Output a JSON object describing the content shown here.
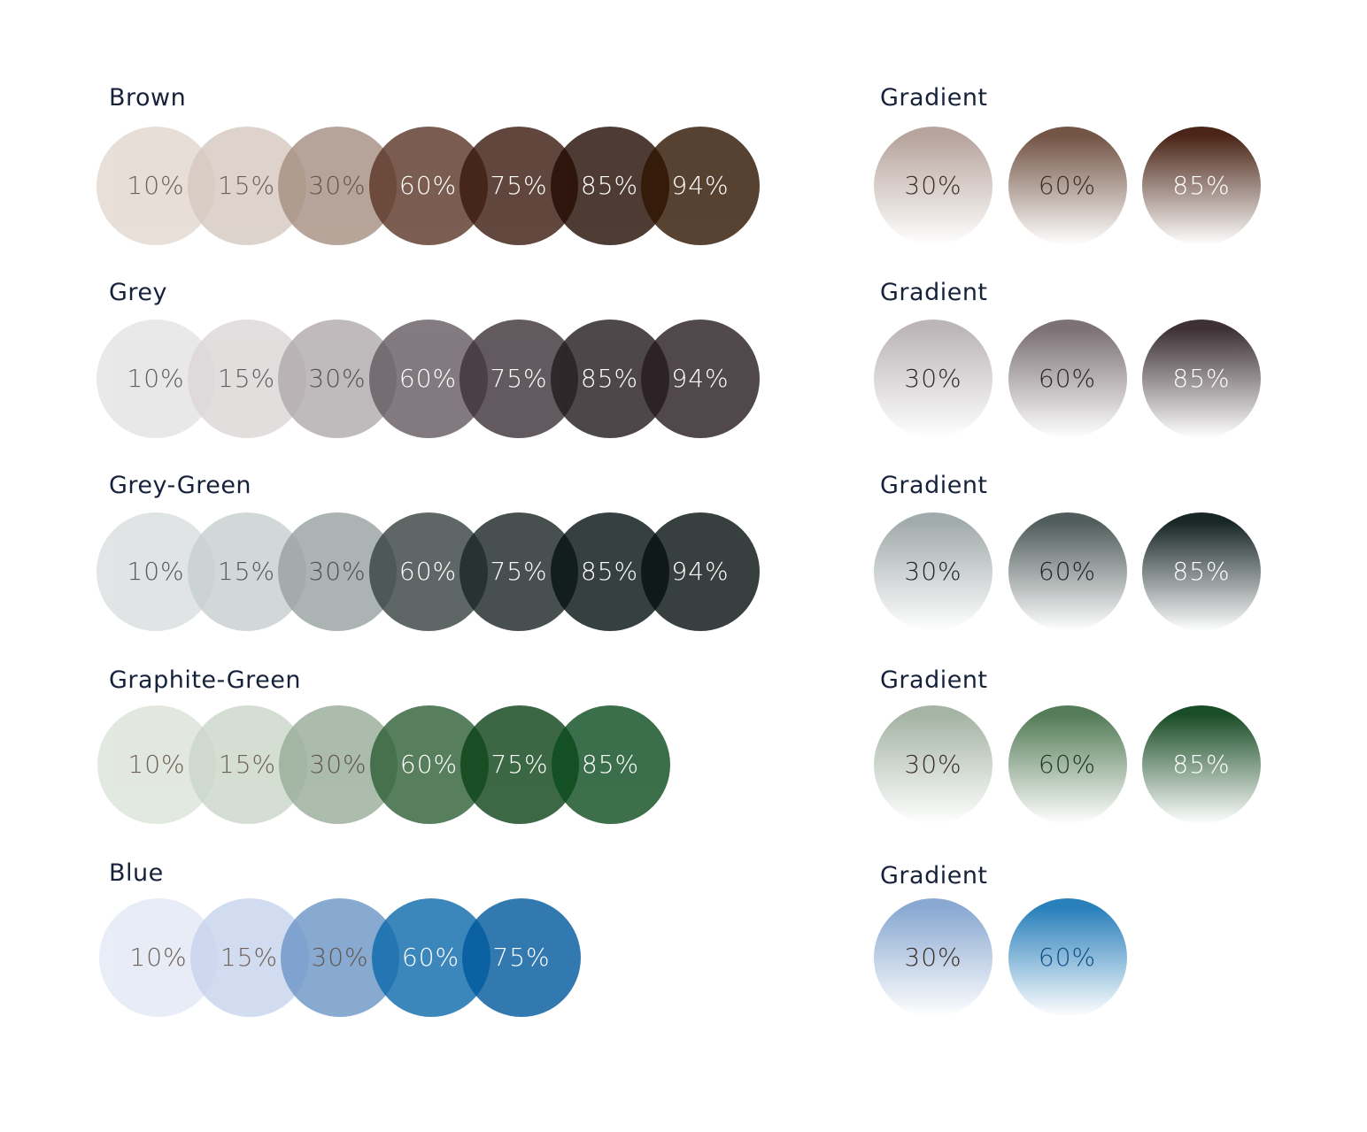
{
  "groups": [
    {
      "label": "Brown",
      "shades": [
        {
          "value": "10%",
          "color": "#e3d7cf",
          "text": "#4a3a30"
        },
        {
          "value": "15%",
          "color": "#d5c8c0",
          "text": "#4a3a30"
        },
        {
          "value": "30%",
          "color": "#a58e81",
          "text": "#3d2d24"
        },
        {
          "value": "60%",
          "color": "#5a3425",
          "text": "#ffffff"
        },
        {
          "value": "75%",
          "color": "#3a190e",
          "text": "#ffffff"
        },
        {
          "value": "85%",
          "color": "#220b02",
          "text": "#ffffff"
        },
        {
          "value": "94%",
          "color": "#2e1400",
          "text": "#ffffff"
        }
      ],
      "gradient_label": "Gradient",
      "gradients": [
        {
          "value": "30%",
          "color": "#b7a59d",
          "text": "#3d2d24"
        },
        {
          "value": "60%",
          "color": "#735445",
          "text": "#3d2d24"
        },
        {
          "value": "85%",
          "color": "#4b2618",
          "text": "#ffffff"
        }
      ]
    },
    {
      "label": "Grey",
      "shades": [
        {
          "value": "10%",
          "color": "#e4e3e3",
          "text": "#3b3638"
        },
        {
          "value": "15%",
          "color": "#dcd6d7",
          "text": "#3b3638"
        },
        {
          "value": "30%",
          "color": "#b0a9ab",
          "text": "#2c2628"
        },
        {
          "value": "60%",
          "color": "#645a60",
          "text": "#ffffff"
        },
        {
          "value": "75%",
          "color": "#3c3136",
          "text": "#ffffff"
        },
        {
          "value": "85%",
          "color": "#231a1e",
          "text": "#ffffff"
        },
        {
          "value": "94%",
          "color": "#251b1f",
          "text": "#ffffff"
        }
      ],
      "gradient_label": "Gradient",
      "gradients": [
        {
          "value": "30%",
          "color": "#bcb6b8",
          "text": "#2c2628"
        },
        {
          "value": "60%",
          "color": "#7c7175",
          "text": "#2c2628"
        },
        {
          "value": "85%",
          "color": "#3d3135",
          "text": "#ffffff"
        }
      ]
    },
    {
      "label": "Grey-Green",
      "shades": [
        {
          "value": "10%",
          "color": "#d9dedf",
          "text": "#2b3132"
        },
        {
          "value": "15%",
          "color": "#c8cfcf",
          "text": "#2b3132"
        },
        {
          "value": "30%",
          "color": "#98a1a1",
          "text": "#1f2525"
        },
        {
          "value": "60%",
          "color": "#374241",
          "text": "#ffffff"
        },
        {
          "value": "75%",
          "color": "#1a2524",
          "text": "#ffffff"
        },
        {
          "value": "85%",
          "color": "#051111",
          "text": "#ffffff"
        },
        {
          "value": "94%",
          "color": "#061010",
          "text": "#ffffff"
        }
      ],
      "gradient_label": "Gradient",
      "gradients": [
        {
          "value": "30%",
          "color": "#a2abab",
          "text": "#1f2525"
        },
        {
          "value": "60%",
          "color": "#515d5c",
          "text": "#1f2525"
        },
        {
          "value": "85%",
          "color": "#182626",
          "text": "#ffffff"
        }
      ]
    },
    {
      "label": "Graphite-Green",
      "shades": [
        {
          "value": "10%",
          "color": "#dbe3d8",
          "text": "#4a3a2a"
        },
        {
          "value": "15%",
          "color": "#cbd6c9",
          "text": "#4a3a2a"
        },
        {
          "value": "30%",
          "color": "#97ab98",
          "text": "#3a2e20"
        },
        {
          "value": "60%",
          "color": "#2e5f35",
          "text": "#ffffff"
        },
        {
          "value": "75%",
          "color": "#0b4217",
          "text": "#ffffff"
        },
        {
          "value": "85%",
          "color": "#0b4b1d",
          "text": "#ffffff"
        }
      ],
      "gradient_label": "Gradient",
      "gradients": [
        {
          "value": "30%",
          "color": "#a5b4a5",
          "text": "#3a2e20"
        },
        {
          "value": "60%",
          "color": "#557c58",
          "text": "#1c3a20"
        },
        {
          "value": "85%",
          "color": "#1a4d27",
          "text": "#ffffff"
        }
      ]
    },
    {
      "label": "Blue",
      "shades": [
        {
          "value": "10%",
          "color": "#e3e8f5",
          "text": "#4a3a30"
        },
        {
          "value": "15%",
          "color": "#c7d4ee",
          "text": "#4a3a30"
        },
        {
          "value": "30%",
          "color": "#6b95c6",
          "text": "#3a2e28"
        },
        {
          "value": "60%",
          "color": "#0b6aab",
          "text": "#ffffff"
        },
        {
          "value": "75%",
          "color": "#00589d",
          "text": "#ffffff"
        }
      ],
      "gradient_label": "Gradient",
      "gradients": [
        {
          "value": "30%",
          "color": "#8aa9d2",
          "text": "#3a2e28"
        },
        {
          "value": "60%",
          "color": "#2a80bb",
          "text": "#0e4f88"
        }
      ]
    }
  ]
}
